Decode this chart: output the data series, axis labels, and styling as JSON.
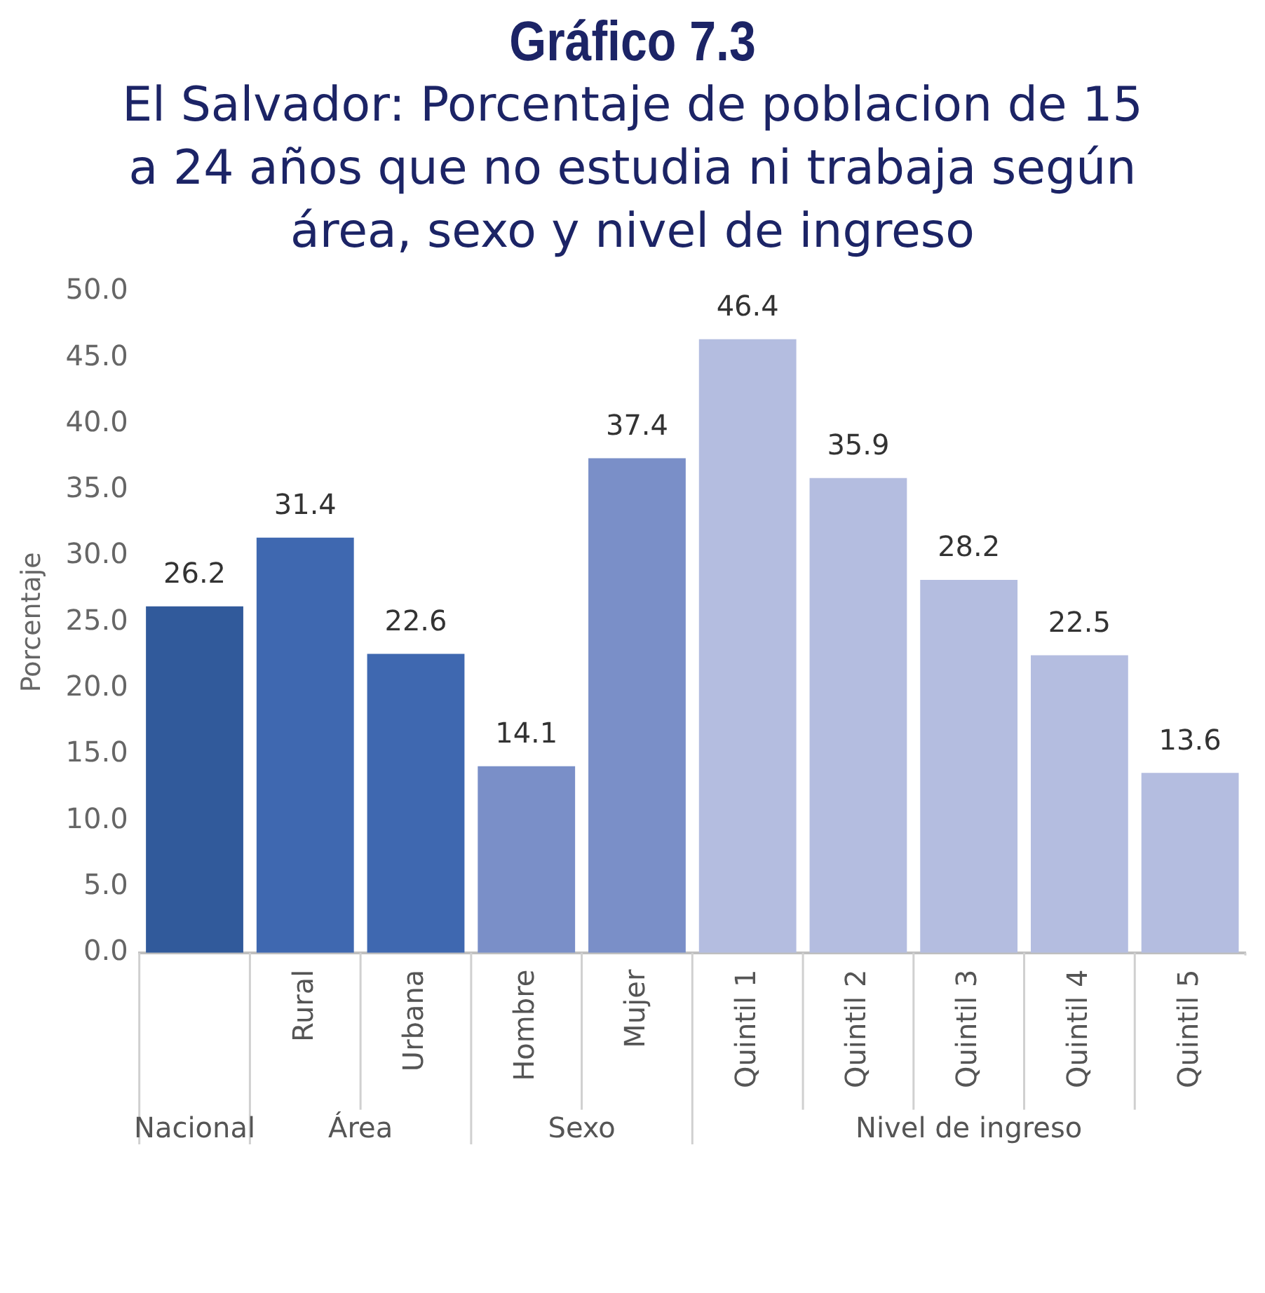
{
  "chart_data": {
    "type": "bar",
    "title": "Gráfico 7.3",
    "subtitle": "El Salvador: Porcentaje de poblacion de 15 a 24 años que no estudia ni trabaja según área, sexo y nivel de ingreso",
    "ylabel": "Porcentaje",
    "categories": [
      null,
      "Rural",
      "Urbana",
      "Hombre",
      "Mujer",
      "Quintil 1",
      "Quintil 2",
      "Quintil 3",
      "Quintil 4",
      "Quintil 5"
    ],
    "values": [
      26.2,
      31.4,
      22.6,
      14.1,
      37.4,
      46.4,
      35.9,
      28.2,
      22.5,
      13.6
    ],
    "colors": [
      "#315a9b",
      "#3f68b0",
      "#3f68b0",
      "#7a8fc8",
      "#7a8fc8",
      "#b4bde0",
      "#b4bde0",
      "#b4bde0",
      "#b4bde0",
      "#b4bde0"
    ],
    "annotations": [
      "Nacional",
      "Área",
      "Sexo",
      "Nivel de ingreso"
    ],
    "ylim": [
      0,
      50
    ],
    "yticks": [
      {
        "value": 0,
        "label": "0.0"
      },
      {
        "value": 5,
        "label": "5.0"
      },
      {
        "value": 10,
        "label": "10.0"
      },
      {
        "value": 15,
        "label": "15.0"
      },
      {
        "value": 20,
        "label": "20.0"
      },
      {
        "value": 25,
        "label": "25.0"
      },
      {
        "value": 30,
        "label": "30.0"
      },
      {
        "value": 35,
        "label": "35.0"
      },
      {
        "value": 40,
        "label": "40.0"
      },
      {
        "value": 45,
        "label": "45.0"
      },
      {
        "value": 50,
        "label": "50.0"
      }
    ],
    "data_labels": true,
    "grid": false,
    "legend": false
  }
}
